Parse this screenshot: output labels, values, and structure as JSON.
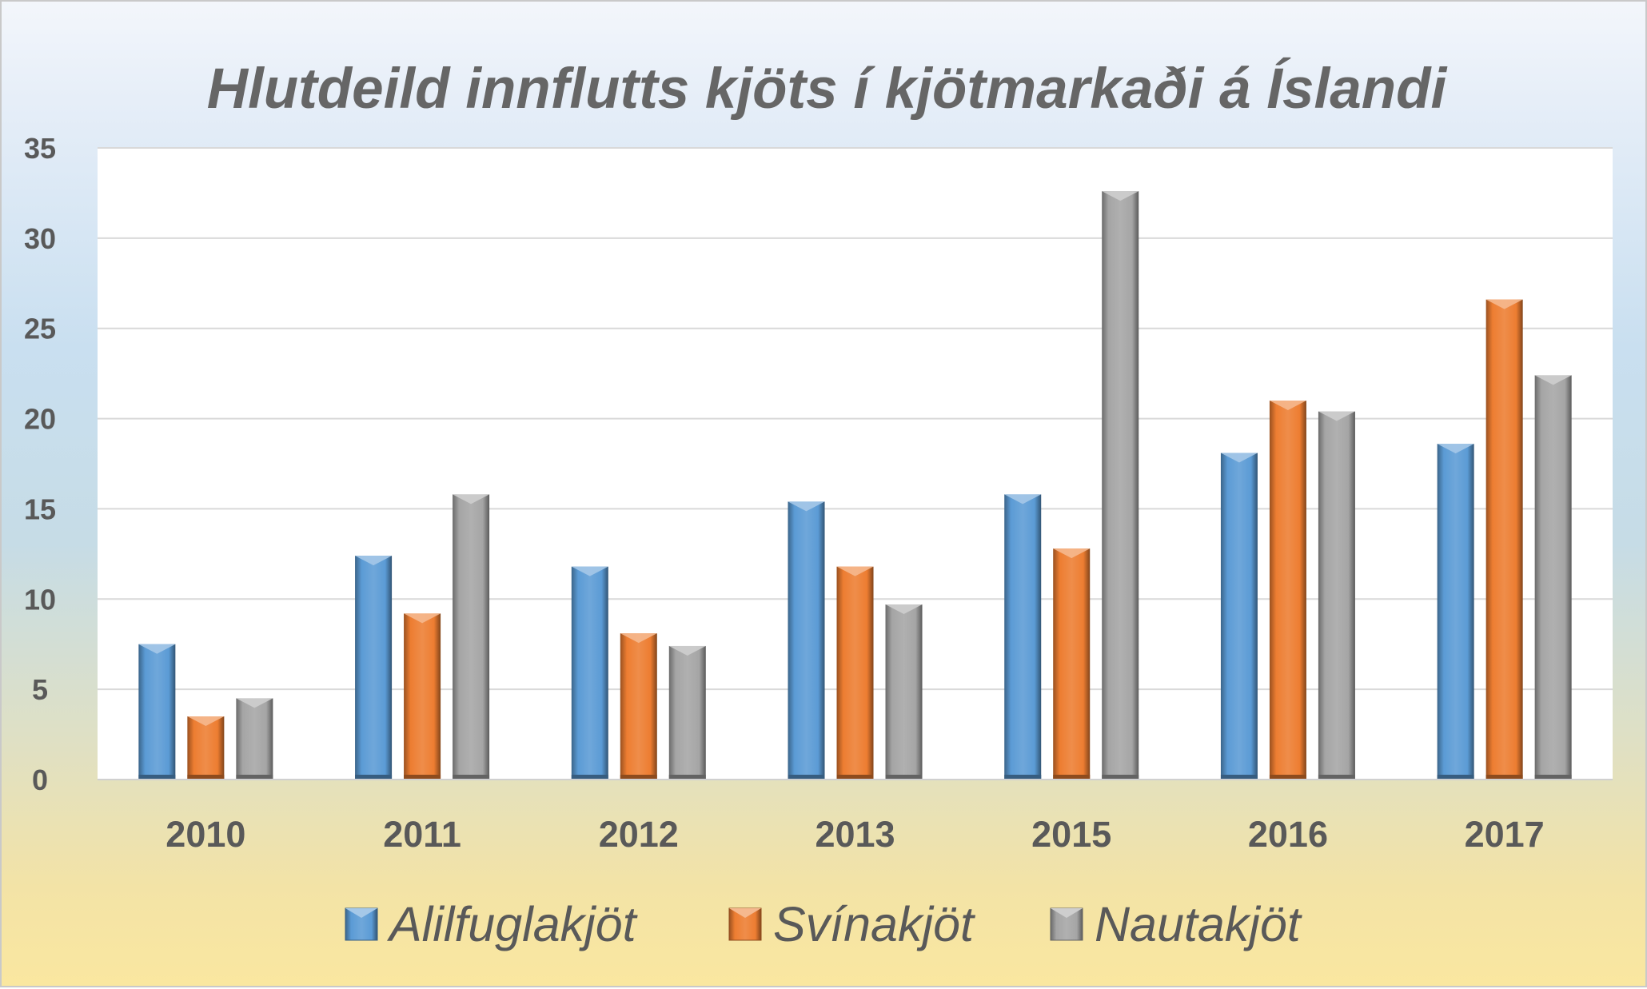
{
  "chart_data": {
    "type": "bar",
    "title": "Hlutdeild innflutts kjöts í kjötmarkaði á Íslandi",
    "xlabel": "",
    "ylabel": "",
    "ylim": [
      0,
      35
    ],
    "yticks": [
      "0",
      "5",
      "10",
      "15",
      "20",
      "25",
      "30",
      "35"
    ],
    "categories": [
      "2010",
      "2011",
      "2012",
      "2013",
      "2015",
      "2016",
      "2017"
    ],
    "series": [
      {
        "name": "Alilfuglakjöt",
        "color": "#5b9bd5",
        "values": [
          7.5,
          12.4,
          11.8,
          15.4,
          15.8,
          18.1,
          18.6
        ]
      },
      {
        "name": "Svínakjöt",
        "color": "#ed7d31",
        "values": [
          3.5,
          9.2,
          8.1,
          11.8,
          12.8,
          21.0,
          26.6
        ]
      },
      {
        "name": "Nautakjöt",
        "color": "#a5a5a5",
        "values": [
          4.5,
          15.8,
          7.4,
          9.7,
          32.6,
          20.4,
          22.4
        ]
      }
    ],
    "grid": true,
    "legend_position": "bottom"
  }
}
